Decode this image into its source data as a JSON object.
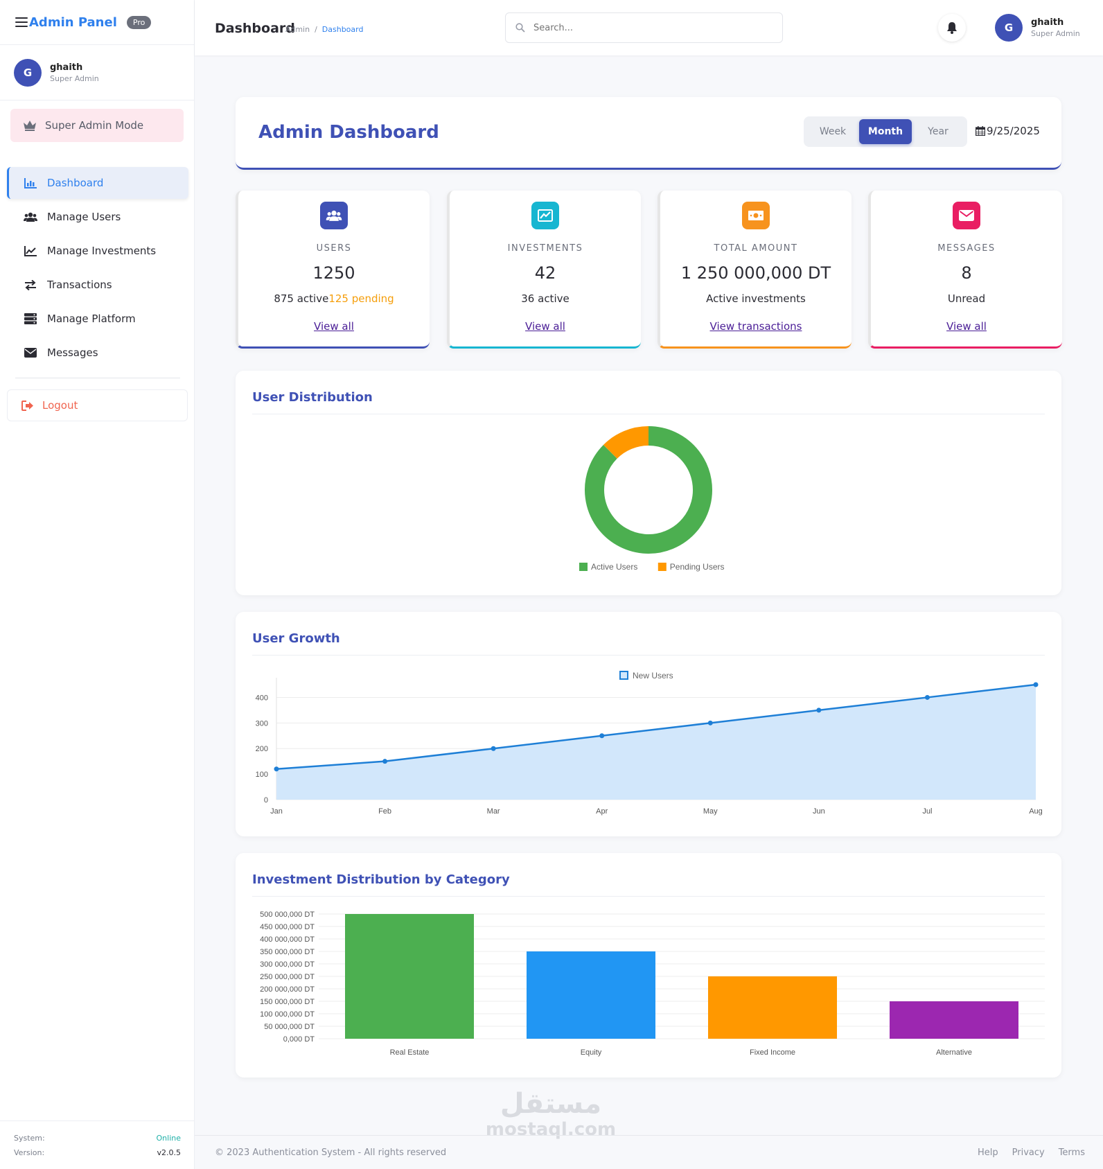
{
  "brand": {
    "title": "Admin Panel",
    "badge": "Pro"
  },
  "sidebar_user": {
    "initial": "G",
    "name": "ghaith",
    "role": "Super Admin"
  },
  "mode": {
    "label": "Super Admin Mode"
  },
  "nav": [
    {
      "label": "Dashboard",
      "icon": "bar-chart-icon",
      "active": true
    },
    {
      "label": "Manage Users",
      "icon": "users-icon"
    },
    {
      "label": "Manage Investments",
      "icon": "line-chart-icon"
    },
    {
      "label": "Transactions",
      "icon": "exchange-icon"
    },
    {
      "label": "Manage Platform",
      "icon": "server-icon"
    },
    {
      "label": "Messages",
      "icon": "envelope-icon"
    }
  ],
  "logout": {
    "label": "Logout"
  },
  "system": {
    "label": "System:",
    "status": "Online",
    "version_label": "Version:",
    "version": "v2.0.5"
  },
  "header": {
    "title": "Dashboard",
    "breadcrumb": [
      "Admin",
      "/",
      "Dashboard"
    ],
    "search_placeholder": "Search...",
    "user": {
      "initial": "G",
      "name": "ghaith",
      "role": "Super Admin"
    }
  },
  "hero": {
    "title": "Admin Dashboard",
    "periods": [
      "Week",
      "Month",
      "Year"
    ],
    "selected_period": "Month",
    "date": "9/25/2025"
  },
  "stats": [
    {
      "label": "USERS",
      "value": "1250",
      "sub": "875 active",
      "sub_extra": "125 pending",
      "link": "View all",
      "color": "#3f51b5",
      "icon": "users-icon"
    },
    {
      "label": "INVESTMENTS",
      "value": "42",
      "sub": "36 active",
      "sub_extra": "",
      "link": "View all",
      "color": "#17b6d1",
      "icon": "chart-area-icon"
    },
    {
      "label": "TOTAL AMOUNT",
      "value": "1 250 000,000 DT",
      "sub": "Active investments",
      "sub_extra": "",
      "link": "View transactions",
      "color": "#f7931e",
      "icon": "money-bill-icon"
    },
    {
      "label": "MESSAGES",
      "value": "8",
      "sub": "Unread",
      "sub_extra": "",
      "link": "View all",
      "color": "#e91e63",
      "icon": "envelope-icon"
    }
  ],
  "panels": {
    "distribution": "User Distribution",
    "growth": "User Growth",
    "investment": "Investment Distribution by Category"
  },
  "chart_data": [
    {
      "type": "pie",
      "variant": "doughnut",
      "labels": [
        "Active Users",
        "Pending Users"
      ],
      "values": [
        875,
        125
      ],
      "colors": [
        "#4caf50",
        "#ff9800"
      ],
      "legend": "bottom"
    },
    {
      "type": "area",
      "categories": [
        "Jan",
        "Feb",
        "Mar",
        "Apr",
        "May",
        "Jun",
        "Jul",
        "Aug"
      ],
      "series": [
        {
          "name": "New Users",
          "values": [
            120,
            150,
            200,
            250,
            300,
            350,
            400,
            450
          ]
        }
      ],
      "yticks": [
        "0",
        "100",
        "200",
        "300",
        "400"
      ],
      "ylim": [
        0,
        450
      ],
      "colors": [
        "#1e7fd6",
        "#d2e7fb"
      ],
      "legend": "top",
      "grid": true
    },
    {
      "type": "bar",
      "categories": [
        "Real Estate",
        "Equity",
        "Fixed Income",
        "Alternative"
      ],
      "values": [
        500000000,
        350000000,
        250000000,
        150000000
      ],
      "colors": [
        "#4caf50",
        "#2196f3",
        "#ff9800",
        "#9c27b0"
      ],
      "yticks": [
        "0,000 DT",
        "50 000,000 DT",
        "100 000,000 DT",
        "150 000,000 DT",
        "200 000,000 DT",
        "250 000,000 DT",
        "300 000,000 DT",
        "350 000,000 DT",
        "400 000,000 DT",
        "450 000,000 DT",
        "500 000,000 DT"
      ],
      "ylim": [
        0,
        500000000
      ],
      "grid": true
    }
  ],
  "footer": {
    "copyright": "© 2023 Authentication System - All rights reserved",
    "links": [
      "Help",
      "Privacy",
      "Terms"
    ]
  },
  "watermark": {
    "line1": "مستقل",
    "line2": "mostaql.com"
  }
}
